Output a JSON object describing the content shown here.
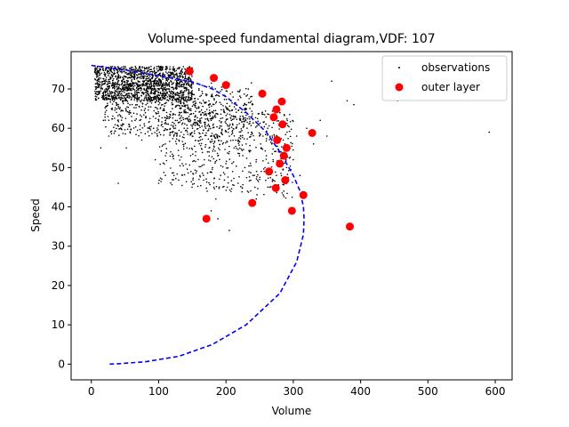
{
  "chart_data": {
    "type": "scatter",
    "title": "Volume-speed fundamental diagram,VDF: 107",
    "xlabel": "Volume",
    "ylabel": "Speed",
    "xlim": [
      -30,
      625
    ],
    "ylim": [
      -4,
      79.5
    ],
    "xticks": [
      0,
      100,
      200,
      300,
      400,
      500,
      600
    ],
    "yticks": [
      0,
      10,
      20,
      30,
      40,
      50,
      60,
      70
    ],
    "grid": false,
    "legend_position": "top-right",
    "series": [
      {
        "name": "observations",
        "kind": "scatter",
        "marker": "dot",
        "color": "#000000",
        "cloud_note": "dense cloud of roughly 3000 observations",
        "points": [
          [
            8,
            73
          ],
          [
            12,
            71
          ],
          [
            15,
            74
          ],
          [
            18,
            69
          ],
          [
            20,
            72
          ],
          [
            22,
            75
          ],
          [
            25,
            70
          ],
          [
            28,
            73
          ],
          [
            30,
            68
          ],
          [
            32,
            71
          ],
          [
            35,
            74
          ],
          [
            38,
            66
          ],
          [
            40,
            72
          ],
          [
            42,
            69
          ],
          [
            45,
            75
          ],
          [
            48,
            71
          ],
          [
            50,
            67
          ],
          [
            52,
            73
          ],
          [
            55,
            70
          ],
          [
            58,
            64
          ],
          [
            60,
            72
          ],
          [
            62,
            68
          ],
          [
            65,
            74
          ],
          [
            68,
            66
          ],
          [
            70,
            71
          ],
          [
            72,
            62
          ],
          [
            75,
            69
          ],
          [
            78,
            73
          ],
          [
            80,
            65
          ],
          [
            82,
            70
          ],
          [
            85,
            60
          ],
          [
            88,
            72
          ],
          [
            90,
            67
          ],
          [
            92,
            63
          ],
          [
            95,
            70
          ],
          [
            98,
            58
          ],
          [
            100,
            66
          ],
          [
            102,
            72
          ],
          [
            105,
            61
          ],
          [
            108,
            68
          ],
          [
            110,
            56
          ],
          [
            112,
            64
          ],
          [
            115,
            70
          ],
          [
            118,
            59
          ],
          [
            120,
            66
          ],
          [
            122,
            53
          ],
          [
            125,
            62
          ],
          [
            128,
            69
          ],
          [
            130,
            57
          ],
          [
            132,
            65
          ],
          [
            135,
            51
          ],
          [
            138,
            60
          ],
          [
            140,
            67
          ],
          [
            142,
            55
          ],
          [
            145,
            63
          ],
          [
            148,
            49
          ],
          [
            150,
            58
          ],
          [
            152,
            66
          ],
          [
            155,
            54
          ],
          [
            158,
            61
          ],
          [
            160,
            47
          ],
          [
            162,
            57
          ],
          [
            165,
            64
          ],
          [
            168,
            52
          ],
          [
            170,
            60
          ],
          [
            172,
            44
          ],
          [
            175,
            55
          ],
          [
            178,
            62
          ],
          [
            180,
            50
          ],
          [
            182,
            58
          ],
          [
            185,
            42
          ],
          [
            188,
            53
          ],
          [
            190,
            60
          ],
          [
            192,
            48
          ],
          [
            195,
            56
          ],
          [
            198,
            64
          ],
          [
            200,
            51
          ],
          [
            202,
            45
          ],
          [
            205,
            58
          ],
          [
            208,
            62
          ],
          [
            210,
            49
          ],
          [
            212,
            55
          ],
          [
            215,
            60
          ],
          [
            218,
            46
          ],
          [
            220,
            53
          ],
          [
            222,
            58
          ],
          [
            225,
            63
          ],
          [
            228,
            50
          ],
          [
            230,
            56
          ],
          [
            232,
            44
          ],
          [
            235,
            54
          ],
          [
            238,
            59
          ],
          [
            240,
            48
          ],
          [
            242,
            57
          ],
          [
            245,
            52
          ],
          [
            248,
            61
          ],
          [
            250,
            47
          ],
          [
            252,
            55
          ],
          [
            255,
            58
          ],
          [
            258,
            50
          ],
          [
            260,
            53
          ],
          [
            262,
            60
          ],
          [
            265,
            45
          ],
          [
            268,
            56
          ],
          [
            270,
            52
          ],
          [
            272,
            58
          ],
          [
            275,
            48
          ],
          [
            278,
            54
          ],
          [
            280,
            51
          ],
          [
            285,
            57
          ],
          [
            290,
            50
          ],
          [
            295,
            55
          ],
          [
            300,
            52
          ],
          [
            305,
            58
          ],
          [
            310,
            48
          ],
          [
            320,
            60
          ],
          [
            330,
            56
          ],
          [
            340,
            62
          ],
          [
            350,
            58
          ],
          [
            357,
            72
          ],
          [
            380,
            67
          ],
          [
            390,
            66
          ],
          [
            455,
            67
          ],
          [
            591,
            59
          ],
          [
            40,
            46
          ],
          [
            178,
            39
          ],
          [
            205,
            34
          ],
          [
            188,
            37
          ],
          [
            245,
            42
          ],
          [
            52,
            55
          ],
          [
            65,
            62
          ],
          [
            26,
            58
          ],
          [
            18,
            62
          ],
          [
            14,
            55
          ],
          [
            30,
            65
          ],
          [
            44,
            60
          ],
          [
            75,
            57
          ],
          [
            95,
            52
          ],
          [
            110,
            48
          ],
          [
            100,
            46
          ]
        ]
      },
      {
        "name": "outer layer",
        "kind": "scatter",
        "marker": "circle",
        "color": "#ff0000",
        "points": [
          [
            146,
            74.5
          ],
          [
            182,
            72.8
          ],
          [
            200,
            71
          ],
          [
            254,
            68.8
          ],
          [
            283,
            66.8
          ],
          [
            275,
            64.8
          ],
          [
            271,
            62.8
          ],
          [
            284,
            61
          ],
          [
            328,
            58.8
          ],
          [
            276,
            57
          ],
          [
            290,
            55
          ],
          [
            286,
            53
          ],
          [
            280,
            51
          ],
          [
            264,
            49
          ],
          [
            288,
            46.8
          ],
          [
            274,
            44.8
          ],
          [
            315,
            43
          ],
          [
            239,
            41
          ],
          [
            171,
            37
          ],
          [
            298,
            39
          ],
          [
            384,
            35
          ]
        ]
      },
      {
        "name": "fitted curve",
        "kind": "line",
        "style": "dashed",
        "color": "#0000ff",
        "points": [
          [
            0,
            76
          ],
          [
            50,
            74.8
          ],
          [
            100,
            73.4
          ],
          [
            150,
            71.8
          ],
          [
            180,
            70
          ],
          [
            200,
            68
          ],
          [
            230,
            64
          ],
          [
            260,
            59
          ],
          [
            280,
            54
          ],
          [
            290,
            51
          ],
          [
            300,
            48
          ],
          [
            310,
            44
          ],
          [
            315,
            40
          ],
          [
            316,
            37
          ],
          [
            315,
            33
          ],
          [
            305,
            26
          ],
          [
            280,
            18
          ],
          [
            230,
            10
          ],
          [
            180,
            5
          ],
          [
            130,
            2
          ],
          [
            80,
            0.6
          ],
          [
            40,
            0.1
          ],
          [
            25,
            0
          ]
        ]
      }
    ]
  }
}
